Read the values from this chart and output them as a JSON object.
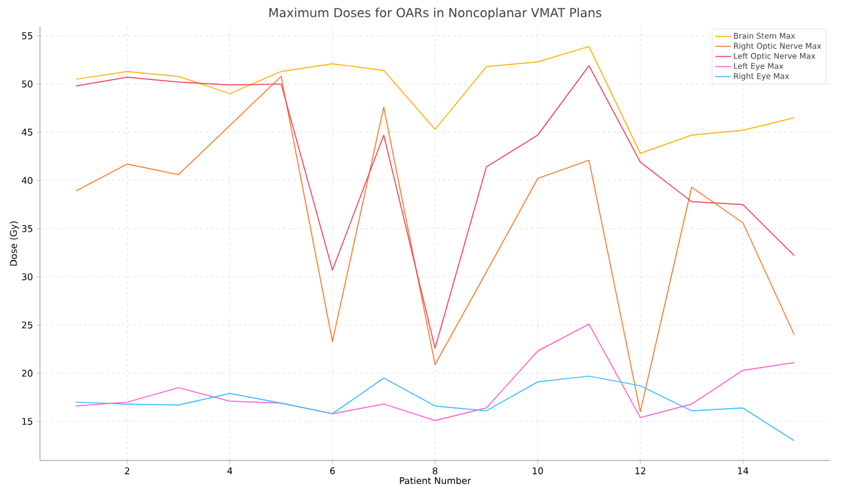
{
  "chart_data": {
    "type": "line",
    "title": "Maximum Doses for OARs in Noncoplanar VMAT Plans",
    "xlabel": "Patient Number",
    "ylabel": "Dose (Gy)",
    "x": [
      1,
      2,
      3,
      4,
      5,
      6,
      7,
      8,
      9,
      10,
      11,
      12,
      13,
      14,
      15
    ],
    "series": [
      {
        "name": "Brain Stem Max",
        "color": "#ffb000",
        "values": [
          50.5,
          51.3,
          50.8,
          49.0,
          51.3,
          52.1,
          51.4,
          45.3,
          51.8,
          52.3,
          53.9,
          42.8,
          44.7,
          45.2,
          46.5
        ]
      },
      {
        "name": "Right Optic Nerve Max",
        "color": "#f57a2c",
        "values": [
          38.9,
          41.7,
          40.6,
          45.7,
          50.8,
          23.3,
          47.6,
          20.9,
          30.5,
          40.2,
          42.1,
          16.0,
          39.3,
          35.6,
          24.0
        ]
      },
      {
        "name": "Left Optic Nerve Max",
        "color": "#f23f5c",
        "values": [
          49.8,
          50.7,
          50.2,
          49.9,
          50.0,
          30.7,
          44.7,
          22.6,
          41.4,
          44.7,
          51.9,
          41.9,
          37.8,
          37.5,
          32.2
        ]
      },
      {
        "name": "Left Eye Max",
        "color": "#ff5ccd",
        "values": [
          16.6,
          17.0,
          18.5,
          17.1,
          16.9,
          15.8,
          16.8,
          15.1,
          16.4,
          22.3,
          25.1,
          15.4,
          16.8,
          20.3,
          21.1
        ]
      },
      {
        "name": "Right Eye Max",
        "color": "#33bbff",
        "values": [
          17.0,
          16.8,
          16.7,
          17.9,
          16.9,
          15.8,
          19.5,
          16.6,
          16.1,
          19.1,
          19.7,
          18.7,
          16.1,
          16.4,
          13.0
        ]
      }
    ],
    "xlim": [
      0.3,
      15.7
    ],
    "ylim": [
      10.95,
      55.95
    ],
    "xticks": [
      2,
      4,
      6,
      8,
      10,
      12,
      14
    ],
    "yticks": [
      15,
      20,
      25,
      30,
      35,
      40,
      45,
      50,
      55
    ],
    "grid": true,
    "legend": "top right"
  }
}
